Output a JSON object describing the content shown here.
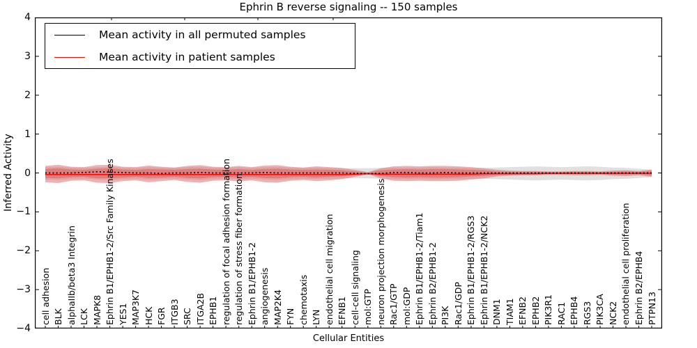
{
  "figure": {
    "title": "Ephrin B reverse signaling -- 150 samples",
    "xlabel": "Cellular Entities",
    "ylabel": "Inferred Activity"
  },
  "legend": {
    "items": [
      {
        "label": "Mean activity in all permuted samples",
        "color": "#000000"
      },
      {
        "label": "Mean activity in patient samples",
        "color": "#ff0000"
      }
    ]
  },
  "axes": {
    "y_tick_labels": [
      "4",
      "3",
      "2",
      "1",
      "0",
      "−1",
      "−2",
      "−3",
      "−4"
    ],
    "y_tick_values": [
      4,
      3,
      2,
      1,
      0,
      -1,
      -2,
      -3,
      -4
    ],
    "x_top_ticks_rel": [
      110,
      215,
      320,
      428
    ]
  },
  "chart_data": {
    "type": "line",
    "title": "Ephrin B reverse signaling -- 150 samples",
    "xlabel": "Cellular Entities",
    "ylabel": "Inferred Activity",
    "ylim": [
      -4,
      4
    ],
    "grid": false,
    "legend_position": "upper left",
    "categories": [
      "cell adhesion",
      "BLK",
      "alphaIIb/beta3 Integrin",
      "LCK",
      "MAPK8",
      "Ephrin B1/EPHB1-2/Src Family Kinases",
      "YES1",
      "MAP3K7",
      "HCK",
      "FGR",
      "ITGB3",
      "SRC",
      "ITGA2B",
      "EPHB1",
      "regulation of focal adhesion formation",
      "regulation of stress fiber formation",
      "Ephrin B1/EPHB1-2",
      "angiogenesis",
      "MAP2K4",
      "FYN",
      "chemotaxis",
      "LYN",
      "endothelial cell migration",
      "EFNB1",
      "cell-cell signaling",
      "mol:GTP",
      "neuron projection morphogenesis",
      "Rac1/GTP",
      "mol:GDP",
      "Ephrin B1/EPHB1-2/Tiam1",
      "Ephrin B2/EPHB1-2",
      "PI3K",
      "Rac1/GDP",
      "Ephrin B1/EPHB1-2/RGS3",
      "Ephrin B1/EPHB1-2/NCK2",
      "DNM1",
      "TIAM1",
      "EFNB2",
      "EPHB2",
      "PIK3R1",
      "RAC1",
      "EPHB4",
      "RGS3",
      "PIK3CA",
      "NCK2",
      "endothelial cell proliferation",
      "Ephrin B2/EPHB4",
      "PTPN13"
    ],
    "series": [
      {
        "name": "Mean activity in all permuted samples",
        "color": "#000000",
        "style": "dotted",
        "values": [
          0.0,
          0.0,
          0.0,
          0.01,
          0.03,
          0.02,
          0.01,
          0.0,
          0.0,
          -0.01,
          0.0,
          0.0,
          0.01,
          0.0,
          0.0,
          0.0,
          0.0,
          0.01,
          0.0,
          0.0,
          0.0,
          0.0,
          0.0,
          0.0,
          -0.01,
          -0.02,
          -0.01,
          0.01,
          0.01,
          0.0,
          0.0,
          0.01,
          0.0,
          0.0,
          0.0,
          0.0,
          0.0,
          0.0,
          0.0,
          0.0,
          0.0,
          0.0,
          0.0,
          0.0,
          0.0,
          0.0,
          0.0,
          0.0
        ]
      },
      {
        "name": "Mean activity in patient samples",
        "color": "#ff0000",
        "style": "solid",
        "values": [
          -0.04,
          -0.04,
          -0.04,
          -0.04,
          -0.04,
          -0.04,
          -0.04,
          -0.04,
          -0.04,
          -0.04,
          -0.04,
          -0.04,
          -0.04,
          -0.04,
          -0.04,
          -0.04,
          -0.04,
          -0.04,
          -0.04,
          -0.04,
          -0.04,
          -0.04,
          -0.04,
          -0.04,
          -0.03,
          -0.02,
          -0.03,
          -0.03,
          -0.03,
          -0.03,
          -0.03,
          -0.03,
          -0.03,
          -0.03,
          -0.02,
          -0.02,
          -0.02,
          -0.02,
          -0.02,
          -0.01,
          -0.01,
          -0.01,
          -0.01,
          -0.01,
          -0.01,
          -0.01,
          -0.01,
          -0.01
        ]
      }
    ],
    "bands": [
      {
        "name": "permuted-samples-range",
        "color": "#bbbbbb",
        "opacity": 0.45,
        "upper": [
          0.15,
          0.16,
          0.14,
          0.13,
          0.15,
          0.16,
          0.14,
          0.13,
          0.15,
          0.14,
          0.13,
          0.15,
          0.16,
          0.14,
          0.13,
          0.15,
          0.13,
          0.15,
          0.16,
          0.14,
          0.13,
          0.14,
          0.13,
          0.12,
          0.12,
          0.12,
          0.13,
          0.14,
          0.14,
          0.14,
          0.15,
          0.14,
          0.14,
          0.13,
          0.13,
          0.14,
          0.15,
          0.16,
          0.17,
          0.16,
          0.15,
          0.16,
          0.17,
          0.16,
          0.14,
          0.13,
          0.11,
          0.08
        ],
        "lower": [
          -0.17,
          -0.18,
          -0.16,
          -0.15,
          -0.17,
          -0.18,
          -0.16,
          -0.15,
          -0.17,
          -0.16,
          -0.15,
          -0.17,
          -0.18,
          -0.16,
          -0.15,
          -0.17,
          -0.15,
          -0.17,
          -0.18,
          -0.16,
          -0.15,
          -0.16,
          -0.15,
          -0.14,
          -0.14,
          -0.14,
          -0.15,
          -0.16,
          -0.16,
          -0.16,
          -0.17,
          -0.16,
          -0.16,
          -0.15,
          -0.15,
          -0.16,
          -0.17,
          -0.18,
          -0.19,
          -0.18,
          -0.17,
          -0.18,
          -0.19,
          -0.18,
          -0.16,
          -0.15,
          -0.13,
          -0.1
        ]
      },
      {
        "name": "patient-samples-range-outer",
        "color": "#e06666",
        "opacity": 0.5,
        "upper": [
          0.18,
          0.21,
          0.16,
          0.15,
          0.2,
          0.21,
          0.16,
          0.15,
          0.19,
          0.16,
          0.14,
          0.18,
          0.2,
          0.16,
          0.15,
          0.18,
          0.15,
          0.19,
          0.2,
          0.16,
          0.14,
          0.17,
          0.15,
          0.13,
          0.08,
          0.02,
          0.12,
          0.17,
          0.18,
          0.17,
          0.18,
          0.18,
          0.17,
          0.15,
          0.12,
          0.08,
          0.06,
          0.05,
          0.05,
          0.04,
          0.04,
          0.05,
          0.05,
          0.04,
          0.06,
          0.07,
          0.05,
          0.09
        ],
        "lower": [
          -0.24,
          -0.26,
          -0.2,
          -0.19,
          -0.25,
          -0.26,
          -0.21,
          -0.19,
          -0.24,
          -0.21,
          -0.18,
          -0.23,
          -0.25,
          -0.2,
          -0.19,
          -0.22,
          -0.19,
          -0.24,
          -0.25,
          -0.2,
          -0.18,
          -0.21,
          -0.19,
          -0.16,
          -0.1,
          -0.03,
          -0.14,
          -0.2,
          -0.21,
          -0.2,
          -0.21,
          -0.21,
          -0.2,
          -0.17,
          -0.14,
          -0.09,
          -0.07,
          -0.06,
          -0.06,
          -0.05,
          -0.05,
          -0.06,
          -0.06,
          -0.05,
          -0.07,
          -0.08,
          -0.06,
          -0.1
        ]
      },
      {
        "name": "patient-samples-range-inner",
        "color": "#d94f4f",
        "opacity": 0.45,
        "upper": [
          0.1,
          0.12,
          0.09,
          0.08,
          0.11,
          0.12,
          0.09,
          0.08,
          0.1,
          0.09,
          0.08,
          0.1,
          0.11,
          0.09,
          0.08,
          0.1,
          0.08,
          0.1,
          0.11,
          0.09,
          0.08,
          0.09,
          0.08,
          0.07,
          0.04,
          0.01,
          0.07,
          0.09,
          0.1,
          0.09,
          0.1,
          0.1,
          0.09,
          0.08,
          0.07,
          0.04,
          0.03,
          0.03,
          0.03,
          0.02,
          0.02,
          0.03,
          0.03,
          0.02,
          0.03,
          0.04,
          0.03,
          0.05
        ],
        "lower": [
          -0.13,
          -0.14,
          -0.11,
          -0.1,
          -0.14,
          -0.14,
          -0.12,
          -0.1,
          -0.13,
          -0.12,
          -0.1,
          -0.13,
          -0.14,
          -0.11,
          -0.1,
          -0.12,
          -0.1,
          -0.13,
          -0.14,
          -0.11,
          -0.1,
          -0.12,
          -0.1,
          -0.09,
          -0.06,
          -0.02,
          -0.08,
          -0.11,
          -0.12,
          -0.11,
          -0.12,
          -0.12,
          -0.11,
          -0.09,
          -0.08,
          -0.05,
          -0.04,
          -0.03,
          -0.03,
          -0.03,
          -0.03,
          -0.03,
          -0.03,
          -0.03,
          -0.04,
          -0.04,
          -0.03,
          -0.06
        ]
      }
    ]
  }
}
